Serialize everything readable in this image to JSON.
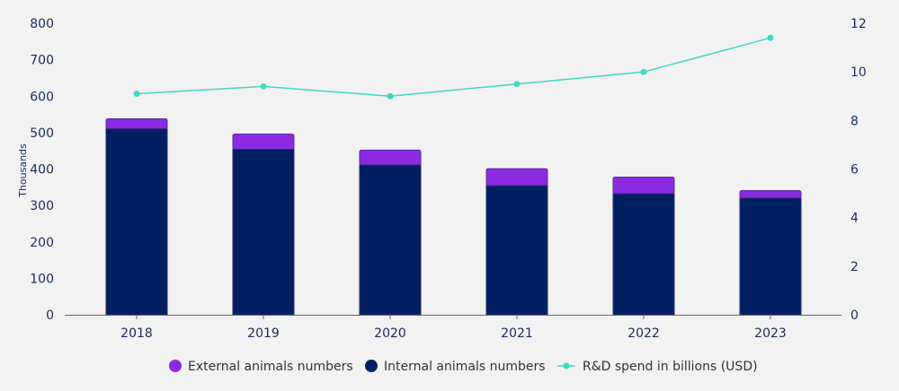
{
  "chart_data": {
    "type": "bar",
    "categories": [
      "2018",
      "2019",
      "2020",
      "2021",
      "2022",
      "2023"
    ],
    "ylabel": "Thousands",
    "ylim": [
      0,
      800
    ],
    "yticks": [
      "0",
      "100",
      "200",
      "300",
      "400",
      "500",
      "600",
      "700",
      "800"
    ],
    "y2lim": [
      0,
      12
    ],
    "y2ticks": [
      "0",
      "2",
      "4",
      "6",
      "8",
      "10",
      "12"
    ],
    "grid": false,
    "legend_position": "bottom",
    "series": [
      {
        "name": "Internal animals numbers",
        "type": "bar",
        "stack": "animals",
        "color": "#001f63",
        "values": [
          510,
          454,
          411,
          354,
          332,
          320
        ]
      },
      {
        "name": "External animals numbers",
        "type": "bar",
        "stack": "animals",
        "color": "#8a2be2",
        "values": [
          28,
          42,
          41,
          47,
          46,
          21
        ]
      },
      {
        "name": "R&D spend in billions (USD)",
        "type": "line",
        "axis": "right",
        "color": "#40d9c4",
        "values": [
          9.1,
          9.4,
          9.0,
          9.5,
          10.0,
          11.4
        ]
      }
    ],
    "legend": [
      "External animals numbers",
      "Internal animals numbers",
      "R&D spend in billions (USD)"
    ]
  }
}
